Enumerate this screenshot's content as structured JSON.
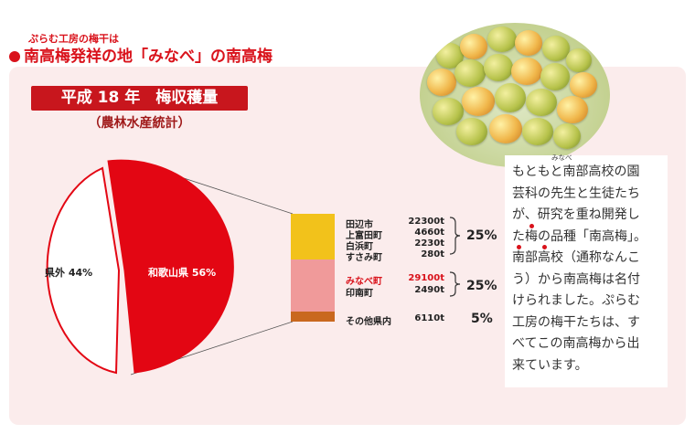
{
  "header": {
    "kicker": "ぷらむ工房の梅干は",
    "headline": "南高梅発祥の地「みなべ」の南高梅"
  },
  "chart_data": {
    "type": "pie",
    "title": "平成 18 年　梅収穫量",
    "subtitle": "（農林水産統計）",
    "slices": [
      {
        "label": "和歌山県 56%",
        "value": 56,
        "color": "#e30613"
      },
      {
        "label": "県外 44%",
        "value": 44,
        "color": "#ffffff"
      }
    ],
    "breakdown": {
      "type": "stacked-bar",
      "groups": [
        {
          "color": "#f2c21b",
          "percent": "25%",
          "items": [
            {
              "label": "田辺市",
              "value": "22300t"
            },
            {
              "label": "上富田町",
              "value": "4660t"
            },
            {
              "label": "白浜町",
              "value": "2230t"
            },
            {
              "label": "すさみ町",
              "value": "280t"
            }
          ]
        },
        {
          "color": "#f09a9a",
          "percent": "25%",
          "items": [
            {
              "label": "みなべ町",
              "value": "29100t",
              "highlight": true
            },
            {
              "label": "印南町",
              "value": "2490t"
            }
          ]
        },
        {
          "color": "#c9681e",
          "percent": "5%",
          "items": [
            {
              "label": "その他県内",
              "value": "6110t"
            }
          ]
        }
      ]
    }
  },
  "description": {
    "ruby": "みなべ",
    "line1": "もともと南部高校の園",
    "line2": "芸科の先生と生徒たち",
    "line3": "が、研究を重ね開発し",
    "line4_pre": "た",
    "line4_em": "梅",
    "line4_post": "の品種「南高梅」。",
    "line5_a": "南",
    "line5_b": "部",
    "line5_c": "高",
    "line5_post": "校（通称なんこ",
    "line6": "う）から南高梅は名付",
    "line7": "けられました。ぷらむ",
    "line8": "工房の梅干たちは、す",
    "line9": "べてこの南高梅から出",
    "line10": "来ています。"
  },
  "photo": {
    "alt_icon": "ume-plums-photo"
  },
  "colors": {
    "accent": "#d9121b",
    "panel": "#fbecec"
  }
}
